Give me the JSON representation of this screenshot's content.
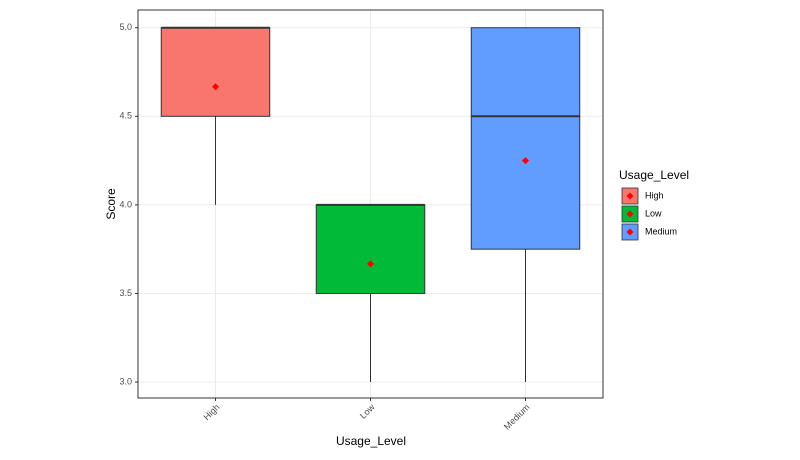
{
  "chart_data": {
    "type": "boxplot",
    "x_label": "Usage_Level",
    "y_label": "Score",
    "legend_title": "Usage_Level",
    "categories": [
      "High",
      "Low",
      "Medium"
    ],
    "colors": [
      "#f8766d",
      "#00ba38",
      "#619cff"
    ],
    "whislo": [
      4.0,
      3.0,
      3.0
    ],
    "q1": [
      4.5,
      3.5,
      3.75
    ],
    "med": [
      5.0,
      4.0,
      4.5
    ],
    "q3": [
      5.0,
      4.0,
      5.0
    ],
    "whishi": [
      5.0,
      4.0,
      5.0
    ],
    "mean": [
      4.667,
      3.667,
      4.25
    ],
    "mean_color": "#ff0000",
    "ylim": [
      2.91,
      5.1
    ],
    "yticks": [
      {
        "value": 3,
        "label": "3.0"
      },
      {
        "value": 3.5,
        "label": "3.5"
      },
      {
        "value": 4,
        "label": "4.0"
      },
      {
        "value": 4.5,
        "label": "4.5"
      },
      {
        "value": 5,
        "label": "5.0"
      }
    ],
    "grid": true
  }
}
